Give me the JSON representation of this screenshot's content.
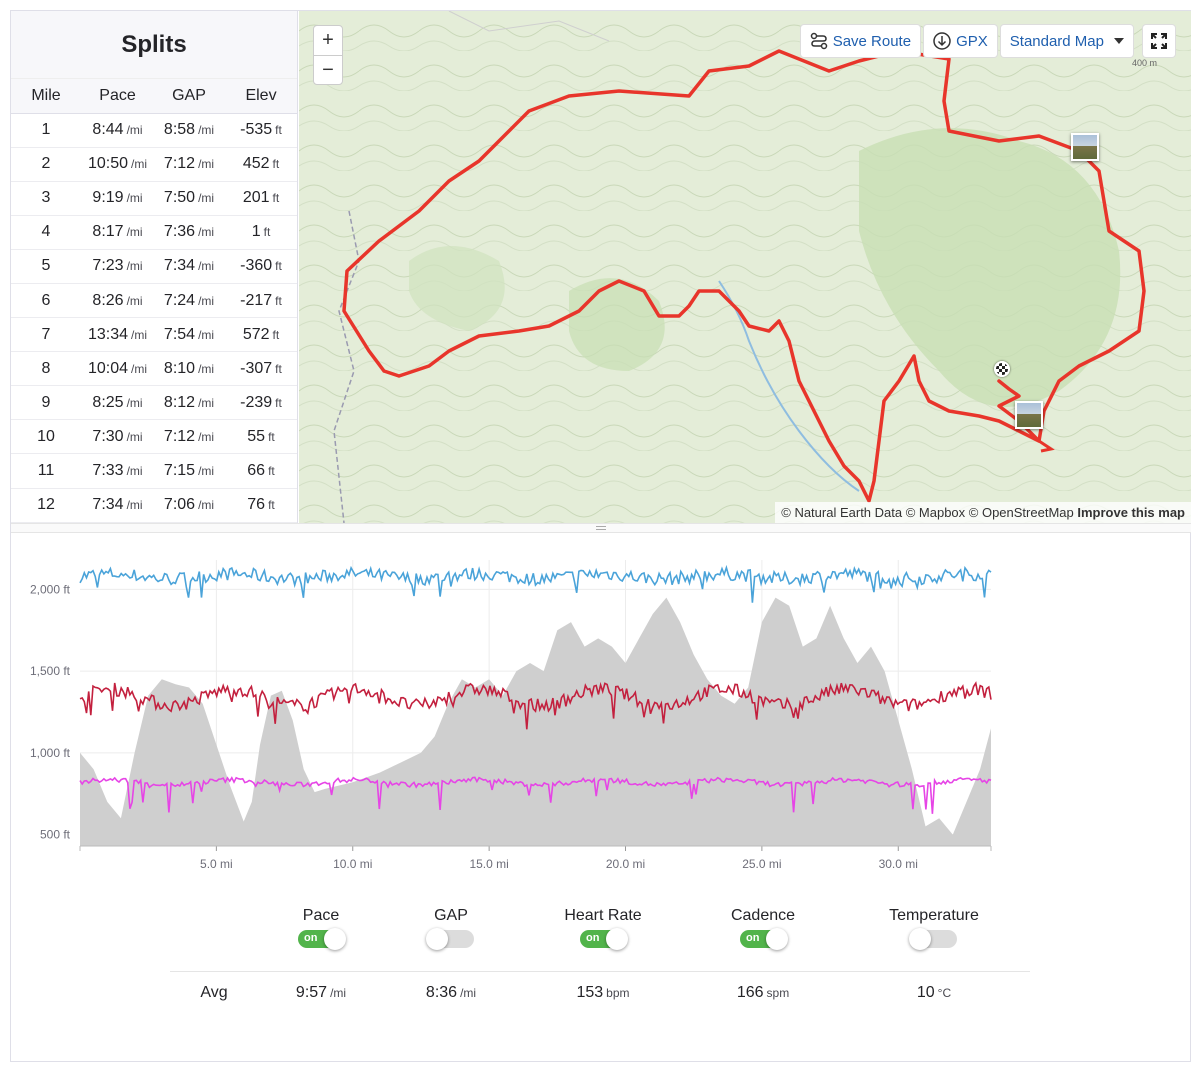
{
  "splits": {
    "title": "Splits",
    "columns": [
      "Mile",
      "Pace",
      "GAP",
      "Elev"
    ],
    "rows": [
      {
        "mile": "1",
        "pace": "8:44",
        "pace_unit": "/mi",
        "gap": "8:58",
        "gap_unit": "/mi",
        "elev": "-535",
        "elev_unit": "ft"
      },
      {
        "mile": "2",
        "pace": "10:50",
        "pace_unit": "/mi",
        "gap": "7:12",
        "gap_unit": "/mi",
        "elev": "452",
        "elev_unit": "ft"
      },
      {
        "mile": "3",
        "pace": "9:19",
        "pace_unit": "/mi",
        "gap": "7:50",
        "gap_unit": "/mi",
        "elev": "201",
        "elev_unit": "ft"
      },
      {
        "mile": "4",
        "pace": "8:17",
        "pace_unit": "/mi",
        "gap": "7:36",
        "gap_unit": "/mi",
        "elev": "1",
        "elev_unit": "ft"
      },
      {
        "mile": "5",
        "pace": "7:23",
        "pace_unit": "/mi",
        "gap": "7:34",
        "gap_unit": "/mi",
        "elev": "-360",
        "elev_unit": "ft"
      },
      {
        "mile": "6",
        "pace": "8:26",
        "pace_unit": "/mi",
        "gap": "7:24",
        "gap_unit": "/mi",
        "elev": "-217",
        "elev_unit": "ft"
      },
      {
        "mile": "7",
        "pace": "13:34",
        "pace_unit": "/mi",
        "gap": "7:54",
        "gap_unit": "/mi",
        "elev": "572",
        "elev_unit": "ft"
      },
      {
        "mile": "8",
        "pace": "10:04",
        "pace_unit": "/mi",
        "gap": "8:10",
        "gap_unit": "/mi",
        "elev": "-307",
        "elev_unit": "ft"
      },
      {
        "mile": "9",
        "pace": "8:25",
        "pace_unit": "/mi",
        "gap": "8:12",
        "gap_unit": "/mi",
        "elev": "-239",
        "elev_unit": "ft"
      },
      {
        "mile": "10",
        "pace": "7:30",
        "pace_unit": "/mi",
        "gap": "7:12",
        "gap_unit": "/mi",
        "elev": "55",
        "elev_unit": "ft"
      },
      {
        "mile": "11",
        "pace": "7:33",
        "pace_unit": "/mi",
        "gap": "7:15",
        "gap_unit": "/mi",
        "elev": "66",
        "elev_unit": "ft"
      },
      {
        "mile": "12",
        "pace": "7:34",
        "pace_unit": "/mi",
        "gap": "7:06",
        "gap_unit": "/mi",
        "elev": "76",
        "elev_unit": "ft"
      }
    ]
  },
  "map": {
    "zoom_in": "+",
    "zoom_out": "−",
    "save_route": "Save Route",
    "gpx": "GPX",
    "map_style": "Standard Map",
    "scale_label": "400 m",
    "attribution": "© Natural Earth Data © Mapbox © OpenStreetMap",
    "improve": "Improve this map",
    "route_color": "#e8352b"
  },
  "chart_data": {
    "type": "line",
    "x_tick_labels": [
      "5.0 mi",
      "10.0 mi",
      "15.0 mi",
      "20.0 mi",
      "25.0 mi",
      "30.0 mi"
    ],
    "x_ticks": [
      5,
      10,
      15,
      20,
      25,
      30
    ],
    "xlim": [
      0,
      33.4
    ],
    "y_tick_labels": [
      "2,000 ft",
      "1,500 ft",
      "1,000 ft",
      "500 ft"
    ],
    "y_ticks": [
      2000,
      1500,
      1000,
      500
    ],
    "ylim": [
      430,
      2180
    ],
    "grid": true,
    "series": [
      {
        "type": "area",
        "color": "#cfcfcf",
        "x": [
          0,
          0.5,
          1,
          1.5,
          2,
          2.5,
          3,
          3.5,
          4,
          4.5,
          5,
          5.5,
          6,
          6.3,
          6.6,
          7,
          7.4,
          7.8,
          8.2,
          8.6,
          9,
          10,
          11,
          12,
          12.5,
          13,
          13.5,
          14,
          14.5,
          15,
          15.5,
          16,
          16.5,
          17,
          17.5,
          18,
          18.5,
          19,
          19.5,
          20,
          20.5,
          21,
          21.5,
          22,
          22.5,
          23,
          23.5,
          24,
          24.5,
          25,
          25.5,
          26,
          26.5,
          27,
          27.5,
          28,
          28.5,
          29,
          29.5,
          30,
          30.5,
          31,
          31.5,
          32,
          32.5,
          33,
          33.4
        ],
        "y": [
          1000,
          900,
          700,
          600,
          1000,
          1350,
          1450,
          1420,
          1400,
          1300,
          1050,
          800,
          580,
          700,
          1050,
          1350,
          1380,
          1200,
          900,
          760,
          780,
          820,
          880,
          960,
          1000,
          1100,
          1300,
          1450,
          1400,
          1450,
          1350,
          1500,
          1550,
          1500,
          1750,
          1800,
          1650,
          1700,
          1650,
          1550,
          1700,
          1850,
          1950,
          1800,
          1600,
          1450,
          1350,
          1300,
          1400,
          1800,
          1950,
          1900,
          1650,
          1700,
          1900,
          1700,
          1550,
          1650,
          1500,
          1200,
          900,
          550,
          600,
          500,
          700,
          900,
          1150
        ]
      },
      {
        "name": "Pace",
        "color": "#4aa3d9",
        "base": 2080
      },
      {
        "name": "Heart Rate",
        "color": "#c3203e",
        "base": 1340
      },
      {
        "name": "Cadence",
        "color": "#e645e6",
        "base": 820
      }
    ]
  },
  "toggles": [
    {
      "label": "Pace",
      "state": "on",
      "on_text": "on"
    },
    {
      "label": "GAP",
      "state": "off",
      "on_text": ""
    },
    {
      "label": "Heart Rate",
      "state": "on",
      "on_text": "on"
    },
    {
      "label": "Cadence",
      "state": "on",
      "on_text": "on"
    },
    {
      "label": "Temperature",
      "state": "off",
      "on_text": ""
    }
  ],
  "averages": {
    "label": "Avg",
    "values": [
      {
        "value": "9:57",
        "unit": "/mi"
      },
      {
        "value": "8:36",
        "unit": "/mi"
      },
      {
        "value": "153",
        "unit": "bpm"
      },
      {
        "value": "166",
        "unit": "spm"
      },
      {
        "value": "10",
        "unit": "°C"
      }
    ]
  }
}
